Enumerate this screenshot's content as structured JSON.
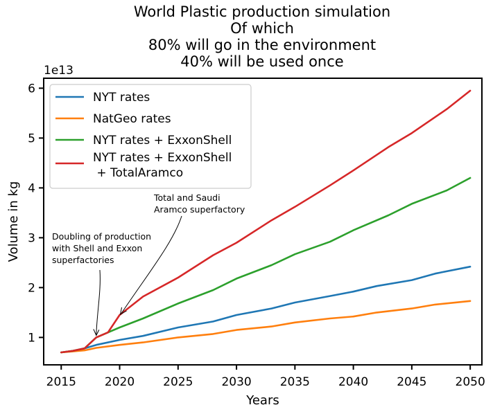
{
  "chart_data": {
    "type": "line",
    "title_lines": [
      "World Plastic production simulation",
      "Of which",
      "80% will go in the environment",
      "40% will be used once"
    ],
    "xlabel": "Years",
    "ylabel": "Volume in kg",
    "y_offset_label": "1e13",
    "xlim": [
      2013.5,
      2051
    ],
    "ylim": [
      0.45,
      6.2
    ],
    "y_unit": "1e13 kg",
    "x_ticks": [
      2015,
      2020,
      2025,
      2030,
      2035,
      2040,
      2045,
      2050
    ],
    "y_ticks": [
      1,
      2,
      3,
      4,
      5,
      6
    ],
    "legend_position": "upper-left",
    "grid": false,
    "series": [
      {
        "name": "NYT rates",
        "color": "#1f77b4",
        "x": [
          2015,
          2016,
          2017,
          2018,
          2020,
          2022,
          2025,
          2028,
          2030,
          2033,
          2035,
          2038,
          2040,
          2042,
          2045,
          2047,
          2050
        ],
        "y": [
          0.7,
          0.73,
          0.78,
          0.85,
          0.95,
          1.03,
          1.2,
          1.32,
          1.45,
          1.58,
          1.7,
          1.83,
          1.92,
          2.03,
          2.15,
          2.28,
          2.42
        ]
      },
      {
        "name": "NatGeo rates",
        "color": "#ff7f0e",
        "x": [
          2015,
          2016,
          2017,
          2018,
          2020,
          2022,
          2025,
          2028,
          2030,
          2033,
          2035,
          2038,
          2040,
          2042,
          2045,
          2047,
          2050
        ],
        "y": [
          0.7,
          0.72,
          0.74,
          0.79,
          0.85,
          0.9,
          1.0,
          1.07,
          1.15,
          1.22,
          1.3,
          1.38,
          1.42,
          1.5,
          1.58,
          1.66,
          1.73
        ]
      },
      {
        "name": "NYT rates + ExxonShell",
        "color": "#2ca02c",
        "x": [
          2015,
          2016,
          2017,
          2018,
          2019,
          2020,
          2022,
          2025,
          2028,
          2030,
          2033,
          2035,
          2038,
          2040,
          2043,
          2045,
          2048,
          2050
        ],
        "y": [
          0.7,
          0.73,
          0.78,
          1.0,
          1.1,
          1.2,
          1.38,
          1.68,
          1.95,
          2.18,
          2.45,
          2.67,
          2.92,
          3.15,
          3.45,
          3.68,
          3.95,
          4.2
        ]
      },
      {
        "name": "NYT rates + ExxonShell\n     + TotalAramco",
        "color": "#d62728",
        "x": [
          2015,
          2016,
          2017,
          2018,
          2019,
          2020,
          2022,
          2025,
          2028,
          2030,
          2033,
          2035,
          2038,
          2040,
          2043,
          2045,
          2048,
          2050
        ],
        "y": [
          0.7,
          0.73,
          0.78,
          1.0,
          1.1,
          1.45,
          1.82,
          2.2,
          2.65,
          2.9,
          3.35,
          3.62,
          4.05,
          4.35,
          4.82,
          5.1,
          5.58,
          5.95
        ]
      }
    ],
    "annotations": [
      {
        "text_lines": [
          "Doubling of production",
          " with Shell and Exxon",
          "superfactories"
        ],
        "point": [
          2018,
          1.0
        ]
      },
      {
        "text_lines": [
          "Total and Saudi",
          "Aramco superfactory"
        ],
        "point": [
          2020,
          1.45
        ]
      }
    ]
  }
}
